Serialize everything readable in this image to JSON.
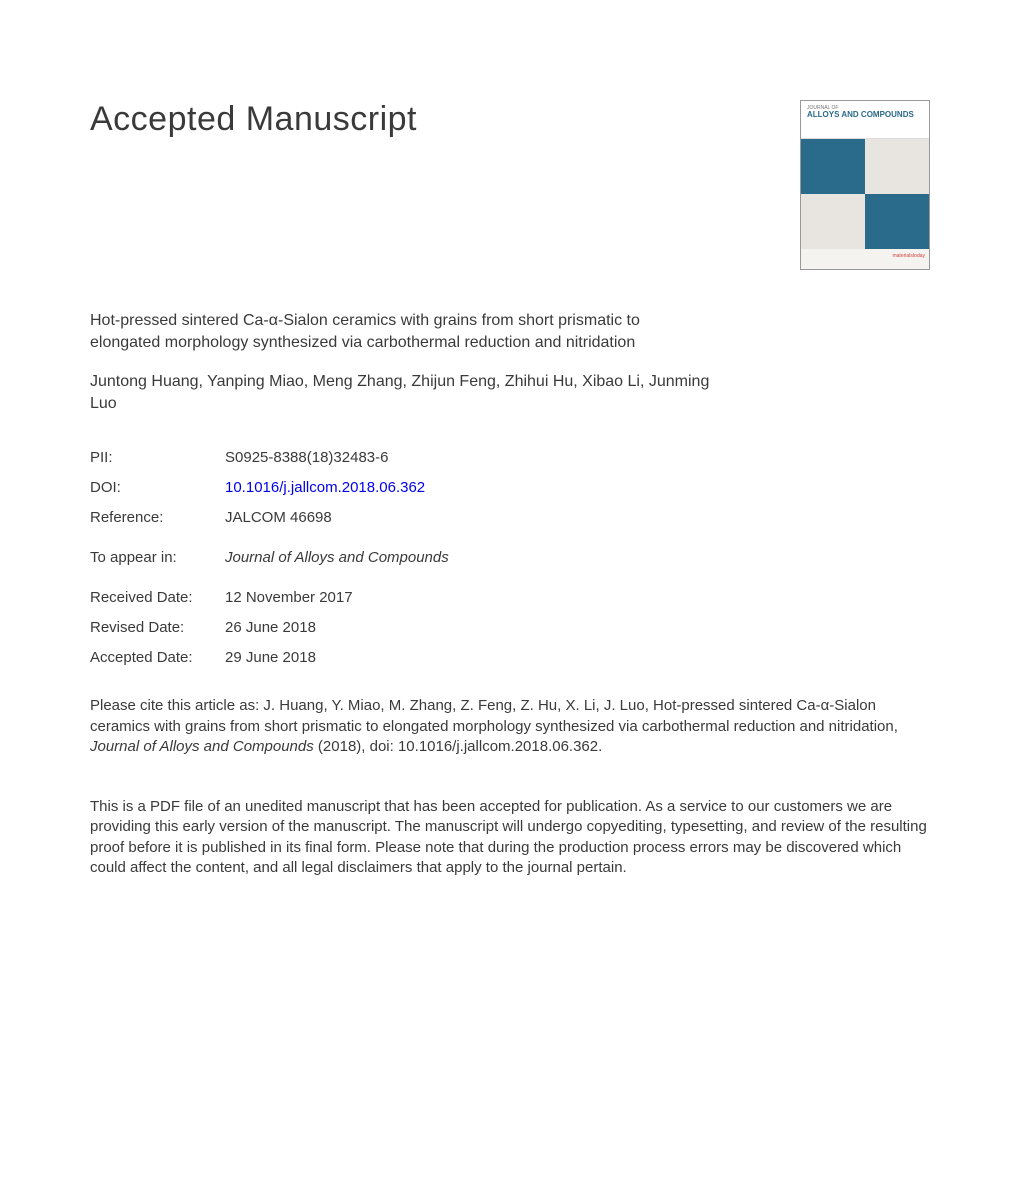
{
  "heading": "Accepted Manuscript",
  "cover": {
    "label": "JOURNAL OF",
    "title": "ALLOYS AND COMPOUNDS",
    "footer": "materialstoday"
  },
  "article_title": "Hot-pressed sintered Ca-α-Sialon ceramics with grains from short prismatic to elongated morphology synthesized via carbothermal reduction and nitridation",
  "authors": "Juntong Huang, Yanping Miao, Meng Zhang, Zhijun Feng, Zhihui Hu, Xibao Li, Junming Luo",
  "meta": {
    "pii": {
      "label": "PII:",
      "value": "S0925-8388(18)32483-6"
    },
    "doi": {
      "label": "DOI:",
      "value": "10.1016/j.jallcom.2018.06.362"
    },
    "reference": {
      "label": "Reference:",
      "value": "JALCOM 46698"
    },
    "appear": {
      "label": "To appear in:",
      "value": "Journal of Alloys and Compounds"
    },
    "received": {
      "label": "Received Date:",
      "value": "12 November 2017"
    },
    "revised": {
      "label": "Revised Date:",
      "value": "26 June 2018"
    },
    "accepted": {
      "label": "Accepted Date:",
      "value": "29 June 2018"
    }
  },
  "citation": {
    "pre": "Please cite this article as: J. Huang, Y. Miao, M. Zhang, Z. Feng, Z. Hu, X. Li, J. Luo, Hot-pressed sintered Ca-α-Sialon ceramics with grains from short prismatic to elongated morphology synthesized via carbothermal reduction and nitridation, ",
    "journal": "Journal of Alloys and Compounds",
    "post": " (2018), doi: 10.1016/j.jallcom.2018.06.362."
  },
  "disclaimer": "This is a PDF file of an unedited manuscript that has been accepted for publication. As a service to our customers we are providing this early version of the manuscript. The manuscript will undergo copyediting, typesetting, and review of the resulting proof before it is published in its final form. Please note that during the production process errors may be discovered which could affect the content, and all legal disclaimers that apply to the journal pertain."
}
